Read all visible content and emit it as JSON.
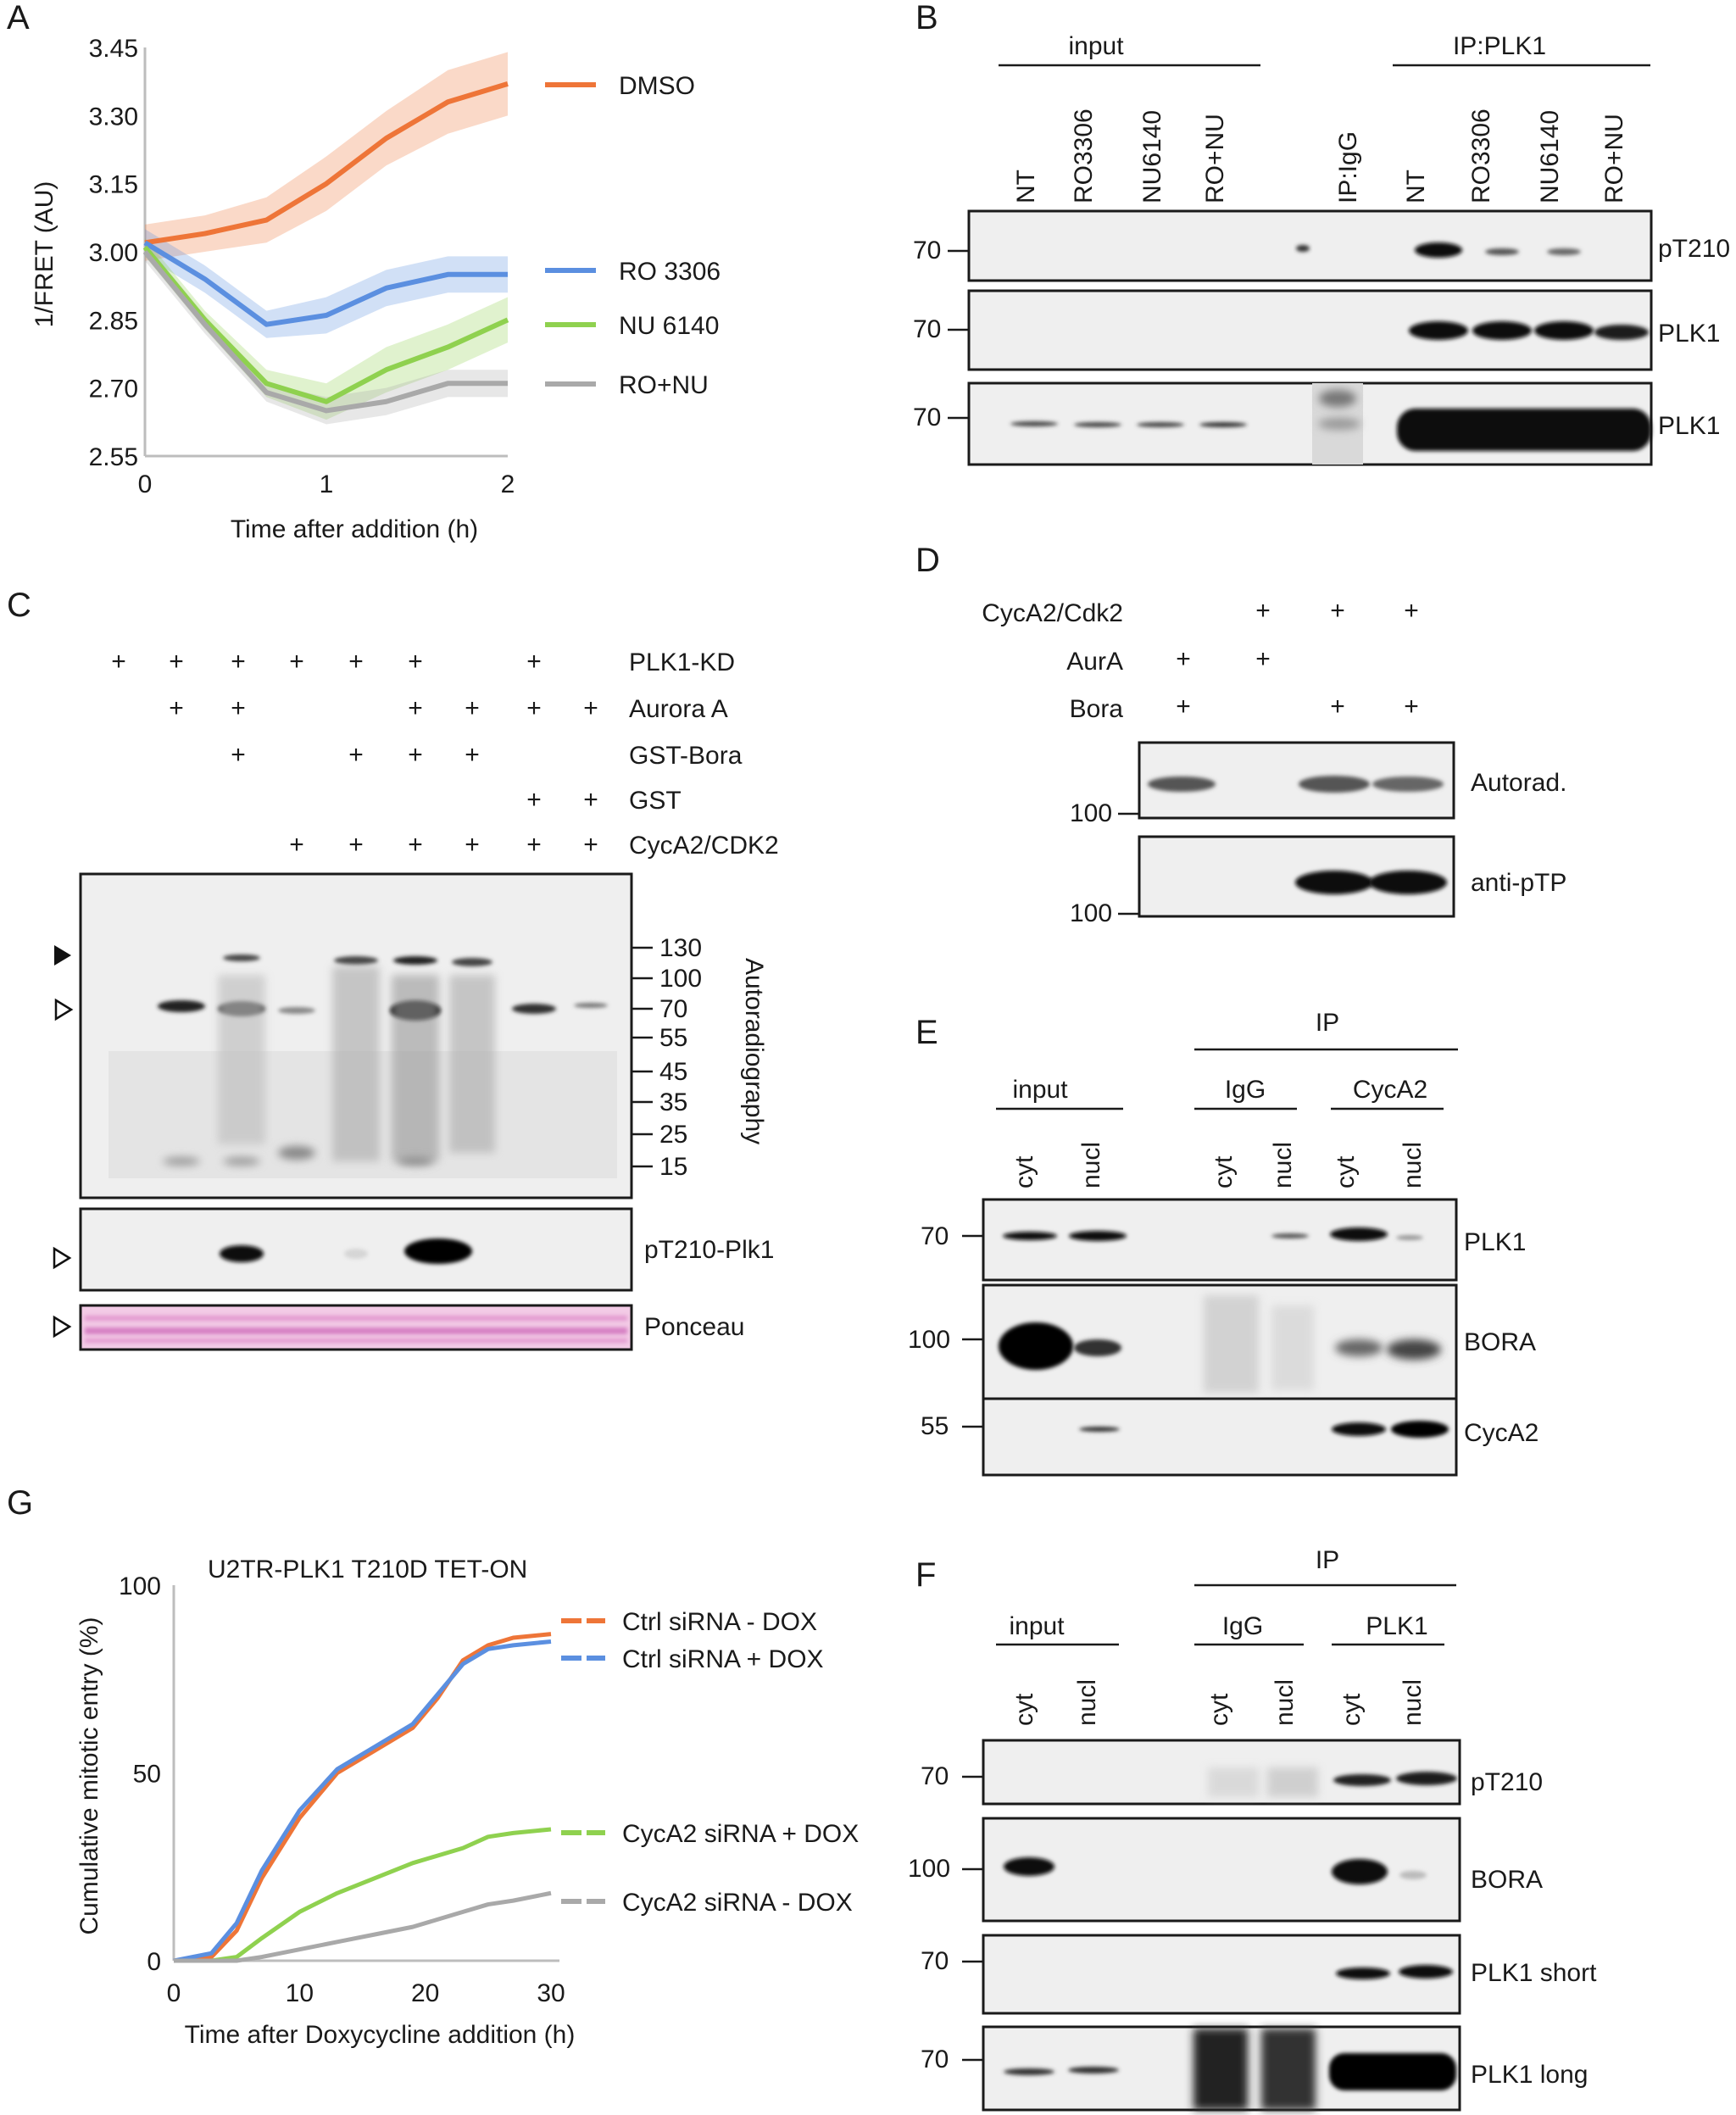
{
  "panels": {
    "A": "A",
    "B": "B",
    "C": "C",
    "D": "D",
    "E": "E",
    "F": "F",
    "G": "G"
  },
  "panel_a": {
    "chart_data": {
      "type": "line",
      "title": "",
      "xlabel": "Time after addition (h)",
      "ylabel": "1/FRET (AU)",
      "xlim": [
        0,
        2
      ],
      "ylim": [
        2.55,
        3.45
      ],
      "x_ticks": [
        "0",
        "1",
        "2"
      ],
      "y_ticks": [
        "3.45",
        "3.30",
        "3.15",
        "3.00",
        "2.85",
        "2.70",
        "2.55"
      ],
      "x": [
        0,
        0.33,
        0.67,
        1.0,
        1.33,
        1.67,
        2.0
      ],
      "series": [
        {
          "name": "DMSO",
          "color": "#ee7538",
          "values": [
            3.02,
            3.04,
            3.07,
            3.15,
            3.25,
            3.33,
            3.37
          ],
          "band": [
            0.04,
            0.04,
            0.05,
            0.06,
            0.06,
            0.07,
            0.07
          ]
        },
        {
          "name": "RO 3306",
          "color": "#5b8fe0",
          "values": [
            3.02,
            2.94,
            2.84,
            2.86,
            2.92,
            2.95,
            2.95
          ],
          "band": [
            0.03,
            0.03,
            0.03,
            0.04,
            0.04,
            0.04,
            0.04
          ]
        },
        {
          "name": "NU 6140",
          "color": "#8fd14f",
          "values": [
            3.01,
            2.85,
            2.71,
            2.67,
            2.74,
            2.79,
            2.85
          ],
          "band": [
            0.02,
            0.02,
            0.03,
            0.04,
            0.05,
            0.05,
            0.05
          ]
        },
        {
          "name": "RO+NU",
          "color": "#a9a9a9",
          "values": [
            3.0,
            2.84,
            2.69,
            2.65,
            2.67,
            2.71,
            2.71
          ],
          "band": [
            0.02,
            0.02,
            0.02,
            0.03,
            0.03,
            0.03,
            0.03
          ]
        }
      ]
    }
  },
  "panel_b": {
    "groups": [
      "input",
      "IP:PLK1"
    ],
    "lanes": [
      "NT",
      "RO3306",
      "NU6140",
      "RO+NU",
      "IP:IgG",
      "NT",
      "RO3306",
      "NU6140",
      "RO+NU"
    ],
    "mw": [
      "70",
      "70",
      "70"
    ],
    "blots": [
      "pT210",
      "PLK1",
      "PLK1"
    ]
  },
  "panel_c": {
    "rows": [
      {
        "label": "PLK1-KD",
        "lanes": [
          1,
          1,
          1,
          1,
          1,
          1,
          0,
          1,
          0
        ]
      },
      {
        "label": "Aurora A",
        "lanes": [
          0,
          1,
          1,
          0,
          0,
          1,
          1,
          1,
          1
        ]
      },
      {
        "label": "GST-Bora",
        "lanes": [
          0,
          0,
          1,
          0,
          1,
          1,
          1,
          0,
          0
        ]
      },
      {
        "label": "GST",
        "lanes": [
          0,
          0,
          0,
          0,
          0,
          0,
          0,
          1,
          1
        ]
      },
      {
        "label": "CycA2/CDK2",
        "lanes": [
          0,
          0,
          0,
          1,
          1,
          1,
          1,
          1,
          1
        ]
      }
    ],
    "plus": "+",
    "mw": [
      "130",
      "100",
      "70",
      "55",
      "45",
      "35",
      "25",
      "15"
    ],
    "side_label": "Autoradiography",
    "blots": [
      "pT210-Plk1",
      "Ponceau"
    ]
  },
  "panel_d": {
    "rows": [
      {
        "label": "CycA2/Cdk2",
        "lanes": [
          0,
          1,
          1,
          1
        ]
      },
      {
        "label": "AurA",
        "lanes": [
          1,
          1,
          0,
          0
        ]
      },
      {
        "label": "Bora",
        "lanes": [
          1,
          0,
          1,
          1
        ]
      }
    ],
    "plus": "+",
    "mw": [
      "100",
      "100"
    ],
    "blots": [
      "Autorad.",
      "anti-pTP"
    ]
  },
  "panel_e": {
    "header": "IP",
    "groups": [
      "input",
      "IgG",
      "CycA2"
    ],
    "lanes": [
      "cyt",
      "nucl",
      "cyt",
      "nucl",
      "cyt",
      "nucl"
    ],
    "mw": [
      "70",
      "100",
      "55"
    ],
    "blots": [
      "PLK1",
      "BORA",
      "CycA2"
    ]
  },
  "panel_f": {
    "header": "IP",
    "groups": [
      "input",
      "IgG",
      "PLK1"
    ],
    "lanes": [
      "cyt",
      "nucl",
      "cyt",
      "nucl",
      "cyt",
      "nucl"
    ],
    "mw": [
      "70",
      "100",
      "70",
      "70"
    ],
    "blots": [
      "pT210",
      "BORA",
      "PLK1 short",
      "PLK1 long"
    ]
  },
  "panel_g": {
    "chart_data": {
      "type": "line",
      "title": "U2TR-PLK1 T210D TET-ON",
      "xlabel": "Time after Doxycycline addition (h)",
      "ylabel": "Cumulative mitotic entry (%)",
      "xlim": [
        0,
        30
      ],
      "ylim": [
        0,
        100
      ],
      "x_ticks": [
        "0",
        "10",
        "20",
        "30"
      ],
      "y_ticks": [
        "100",
        "50",
        "0"
      ],
      "x": [
        0,
        3,
        5,
        7,
        10,
        13,
        16,
        19,
        21,
        23,
        25,
        27,
        30
      ],
      "series": [
        {
          "name": "Ctrl siRNA - DOX",
          "color": "#ee7538",
          "values": [
            0,
            1,
            8,
            22,
            38,
            50,
            56,
            62,
            70,
            80,
            84,
            86,
            87
          ]
        },
        {
          "name": "Ctrl siRNA + DOX",
          "color": "#5b8fe0",
          "values": [
            0,
            2,
            10,
            24,
            40,
            51,
            57,
            63,
            71,
            79,
            83,
            84,
            85
          ]
        },
        {
          "name": "CycA2 siRNA + DOX",
          "color": "#8fd14f",
          "values": [
            0,
            0,
            1,
            6,
            13,
            18,
            22,
            26,
            28,
            30,
            33,
            34,
            35
          ]
        },
        {
          "name": "CycA2 siRNA - DOX",
          "color": "#a9a9a9",
          "values": [
            0,
            0,
            0,
            1,
            3,
            5,
            7,
            9,
            11,
            13,
            15,
            16,
            18
          ]
        }
      ]
    }
  }
}
